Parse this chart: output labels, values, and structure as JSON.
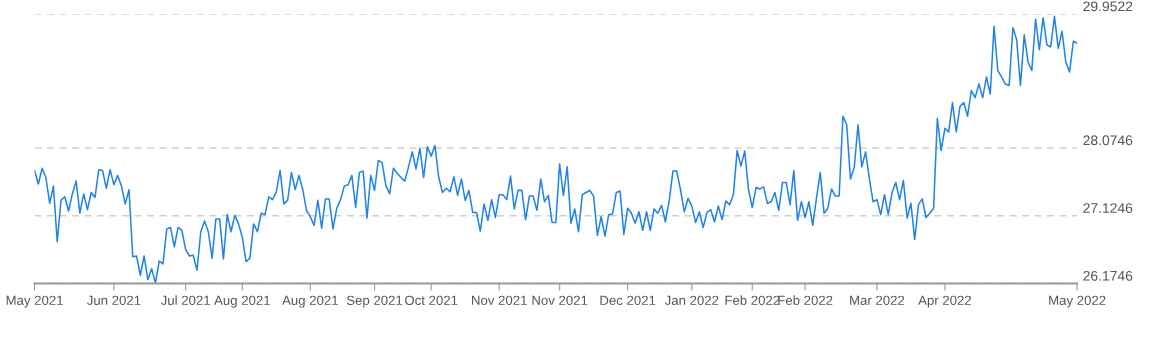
{
  "chart_data": {
    "type": "line",
    "categories": [
      "May 2021",
      null,
      null,
      null,
      null,
      null,
      null,
      null,
      null,
      null,
      null,
      null,
      null,
      null,
      null,
      null,
      null,
      null,
      null,
      null,
      null,
      "Jun 2021",
      null,
      null,
      null,
      null,
      null,
      null,
      null,
      null,
      null,
      null,
      null,
      null,
      null,
      null,
      null,
      null,
      null,
      null,
      "Jul 2021",
      null,
      null,
      null,
      null,
      null,
      null,
      null,
      null,
      null,
      null,
      null,
      null,
      null,
      null,
      "Aug 2021",
      null,
      null,
      null,
      null,
      null,
      null,
      null,
      null,
      null,
      null,
      null,
      null,
      null,
      null,
      null,
      null,
      null,
      "Aug 2021",
      null,
      null,
      null,
      null,
      null,
      null,
      null,
      null,
      null,
      null,
      null,
      null,
      null,
      null,
      null,
      null,
      "Sep 2021",
      null,
      null,
      null,
      null,
      null,
      null,
      null,
      null,
      null,
      null,
      null,
      null,
      null,
      null,
      "Oct 2021",
      null,
      null,
      null,
      null,
      null,
      null,
      null,
      null,
      null,
      null,
      null,
      null,
      null,
      null,
      null,
      null,
      null,
      "Nov 2021",
      null,
      null,
      null,
      null,
      null,
      null,
      null,
      null,
      null,
      null,
      null,
      null,
      null,
      null,
      null,
      "Nov 2021",
      null,
      null,
      null,
      null,
      null,
      null,
      null,
      null,
      null,
      null,
      null,
      null,
      null,
      null,
      null,
      null,
      null,
      "Dec 2021",
      null,
      null,
      null,
      null,
      null,
      null,
      null,
      null,
      null,
      null,
      null,
      null,
      null,
      null,
      null,
      null,
      "Jan 2022",
      null,
      null,
      null,
      null,
      null,
      null,
      null,
      null,
      null,
      null,
      null,
      null,
      null,
      null,
      null,
      "Feb 2022",
      null,
      null,
      null,
      null,
      null,
      null,
      null,
      null,
      null,
      null,
      null,
      null,
      null,
      "Feb 2022",
      null,
      null,
      null,
      null,
      null,
      null,
      null,
      null,
      null,
      null,
      null,
      null,
      null,
      null,
      null,
      null,
      null,
      null,
      "Mar 2022",
      null,
      null,
      null,
      null,
      null,
      null,
      null,
      null,
      null,
      null,
      null,
      null,
      null,
      null,
      null,
      null,
      null,
      "Apr 2022",
      null,
      null,
      null,
      null,
      null,
      null,
      null,
      null,
      null,
      null,
      null,
      null,
      null,
      null,
      null,
      null,
      null,
      null,
      null,
      null,
      null,
      null,
      null,
      null,
      null,
      null,
      null,
      null,
      null,
      null,
      null,
      null,
      null,
      null,
      "May 2022"
    ],
    "series": [
      {
        "color": "#2083e8",
        "values": [
          27.76,
          27.57,
          27.79,
          27.66,
          27.3,
          27.54,
          26.76,
          27.34,
          27.39,
          27.19,
          27.43,
          27.61,
          27.16,
          27.43,
          27.21,
          27.45,
          27.38,
          27.77,
          27.76,
          27.51,
          27.77,
          27.56,
          27.69,
          27.54,
          27.29,
          27.49,
          26.55,
          26.56,
          26.29,
          26.56,
          26.23,
          26.38,
          26.18,
          26.49,
          26.45,
          26.94,
          26.96,
          26.69,
          26.96,
          26.92,
          26.65,
          26.56,
          26.57,
          26.36,
          26.9,
          27.05,
          26.9,
          26.53,
          27.08,
          27.08,
          26.52,
          27.14,
          26.9,
          27.13,
          27.01,
          26.82,
          26.48,
          26.53,
          27.01,
          26.9,
          27.16,
          27.14,
          27.39,
          27.35,
          27.46,
          27.76,
          27.29,
          27.34,
          27.73,
          27.49,
          27.69,
          27.49,
          27.2,
          27.11,
          26.99,
          27.34,
          26.95,
          27.36,
          27.36,
          26.94,
          27.23,
          27.35,
          27.54,
          27.56,
          27.69,
          27.24,
          27.73,
          27.75,
          27.09,
          27.69,
          27.48,
          27.9,
          27.87,
          27.55,
          27.43,
          27.79,
          27.72,
          27.66,
          27.61,
          27.81,
          28.02,
          27.78,
          28.07,
          27.66,
          28.09,
          27.96,
          28.11,
          27.66,
          27.45,
          27.51,
          27.46,
          27.67,
          27.41,
          27.64,
          27.34,
          27.48,
          27.17,
          27.17,
          26.91,
          27.29,
          27.06,
          27.35,
          27.1,
          27.42,
          27.42,
          27.35,
          27.68,
          27.22,
          27.48,
          27.48,
          27.07,
          27.4,
          27.4,
          27.2,
          27.64,
          27.32,
          27.41,
          27.03,
          27.03,
          27.85,
          27.41,
          27.81,
          27.02,
          27.22,
          26.9,
          27.42,
          27.45,
          27.48,
          27.4,
          26.85,
          27.11,
          26.84,
          27.14,
          27.15,
          27.45,
          27.47,
          26.86,
          27.23,
          27.16,
          27.02,
          27.18,
          26.92,
          27.18,
          26.92,
          27.22,
          27.16,
          27.27,
          27.04,
          27.33,
          27.75,
          27.75,
          27.49,
          27.18,
          27.37,
          27.26,
          27.03,
          27.18,
          26.96,
          27.17,
          27.21,
          27.04,
          27.26,
          27.07,
          27.33,
          27.28,
          27.42,
          28.04,
          27.82,
          28.03,
          27.49,
          27.24,
          27.52,
          27.5,
          27.53,
          27.3,
          27.32,
          27.45,
          27.2,
          27.59,
          27.59,
          27.28,
          27.76,
          27.06,
          27.32,
          27.1,
          27.32,
          26.99,
          27.37,
          27.73,
          27.16,
          27.23,
          27.5,
          27.4,
          27.4,
          28.52,
          28.4,
          27.64,
          27.8,
          28.4,
          27.81,
          28.02,
          27.64,
          27.32,
          27.35,
          27.14,
          27.42,
          27.14,
          27.45,
          27.59,
          27.35,
          27.62,
          27.09,
          27.3,
          26.79,
          27.28,
          27.36,
          27.1,
          27.16,
          27.23,
          28.49,
          28.04,
          28.35,
          28.3,
          28.71,
          28.3,
          28.66,
          28.71,
          28.52,
          28.88,
          28.78,
          28.97,
          28.78,
          29.07,
          28.83,
          29.78,
          29.16,
          29.07,
          28.97,
          28.95,
          29.76,
          29.59,
          28.95,
          29.66,
          29.28,
          29.16,
          29.88,
          29.45,
          29.9,
          29.52,
          29.49,
          29.92,
          29.47,
          29.71,
          29.28,
          29.14,
          29.57,
          29.54
        ]
      }
    ],
    "ylim": [
      26.1746,
      29.9522
    ],
    "yticks": [
      26.1746,
      27.1246,
      28.0746,
      29.9522
    ],
    "grid": "y",
    "line_style": "solid"
  }
}
